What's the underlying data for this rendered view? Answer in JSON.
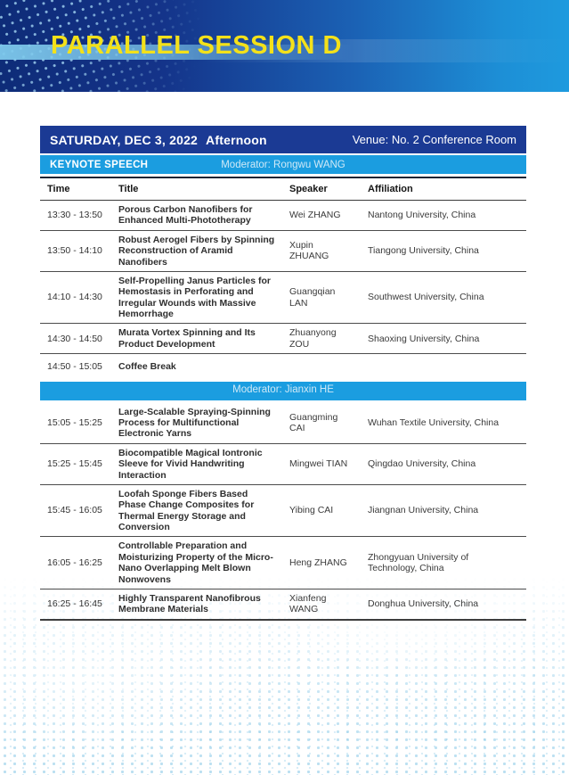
{
  "banner": {
    "title": "PARALLEL SESSION D"
  },
  "session_header": {
    "date": "SATURDAY, DEC 3, 2022",
    "period": "Afternoon",
    "venue": "Venue: No. 2 Conference Room"
  },
  "keynote": {
    "label": "KEYNOTE SPEECH",
    "moderator": "Moderator: Rongwu WANG"
  },
  "colors": {
    "banner_dark_blue": "#0e2c78",
    "banner_light_blue": "#1e9ade",
    "title_yellow": "#f3e11a",
    "session_bar_navy": "#1b3a94",
    "accent_blue_bar": "#1b9de0",
    "footer_dot_blue": "#7ac2e4"
  },
  "table": {
    "headers": [
      "Time",
      "Title",
      "Speaker",
      "Affiliation"
    ],
    "rows": [
      {
        "type": "talk",
        "time": "13:30 - 13:50",
        "title": "Porous Carbon Nanofibers for Enhanced Multi-Phototherapy",
        "speaker": "Wei ZHANG",
        "affiliation": "Nantong University, China"
      },
      {
        "type": "talk",
        "time": "13:50 - 14:10",
        "title": "Robust Aerogel Fibers by Spinning Reconstruction of Aramid Nanofibers",
        "speaker": "Xupin ZHUANG",
        "affiliation": "Tiangong University, China"
      },
      {
        "type": "talk",
        "time": "14:10 - 14:30",
        "title": "Self-Propelling Janus Particles for Hemostasis in Perforating and Irregular Wounds with Massive Hemorrhage",
        "speaker": "Guangqian LAN",
        "affiliation": "Southwest University, China"
      },
      {
        "type": "talk",
        "time": "14:30 - 14:50",
        "title": "Murata Vortex Spinning and Its Product Development",
        "speaker": "Zhuanyong ZOU",
        "affiliation": "Shaoxing University, China"
      },
      {
        "type": "break",
        "time": "14:50 - 15:05",
        "title": "Coffee Break"
      },
      {
        "type": "moderator",
        "label": "Moderator: Jianxin HE"
      },
      {
        "type": "talk",
        "time": "15:05 - 15:25",
        "title": "Large-Scalable Spraying-Spinning Process for Multifunctional Electronic Yarns",
        "speaker": "Guangming CAI",
        "affiliation": "Wuhan Textile University, China"
      },
      {
        "type": "talk",
        "time": "15:25 - 15:45",
        "title": "Biocompatible Magical Iontronic Sleeve for Vivid Handwriting Interaction",
        "speaker": "Mingwei TIAN",
        "affiliation": "Qingdao University, China"
      },
      {
        "type": "talk",
        "time": "15:45 - 16:05",
        "title": "Loofah Sponge Fibers Based Phase Change Composites for Thermal Energy Storage and Conversion",
        "speaker": "Yibing CAI",
        "affiliation": "Jiangnan University, China"
      },
      {
        "type": "talk",
        "time": "16:05 - 16:25",
        "title": "Controllable Preparation and Moisturizing Property of the Micro-Nano Overlapping Melt Blown Nonwovens",
        "speaker": "Heng ZHANG",
        "affiliation": "Zhongyuan University of Technology, China"
      },
      {
        "type": "talk",
        "time": "16:25 - 16:45",
        "title": "Highly Transparent Nanofibrous Membrane Materials",
        "speaker": "Xianfeng WANG",
        "affiliation": "Donghua University, China"
      }
    ]
  }
}
